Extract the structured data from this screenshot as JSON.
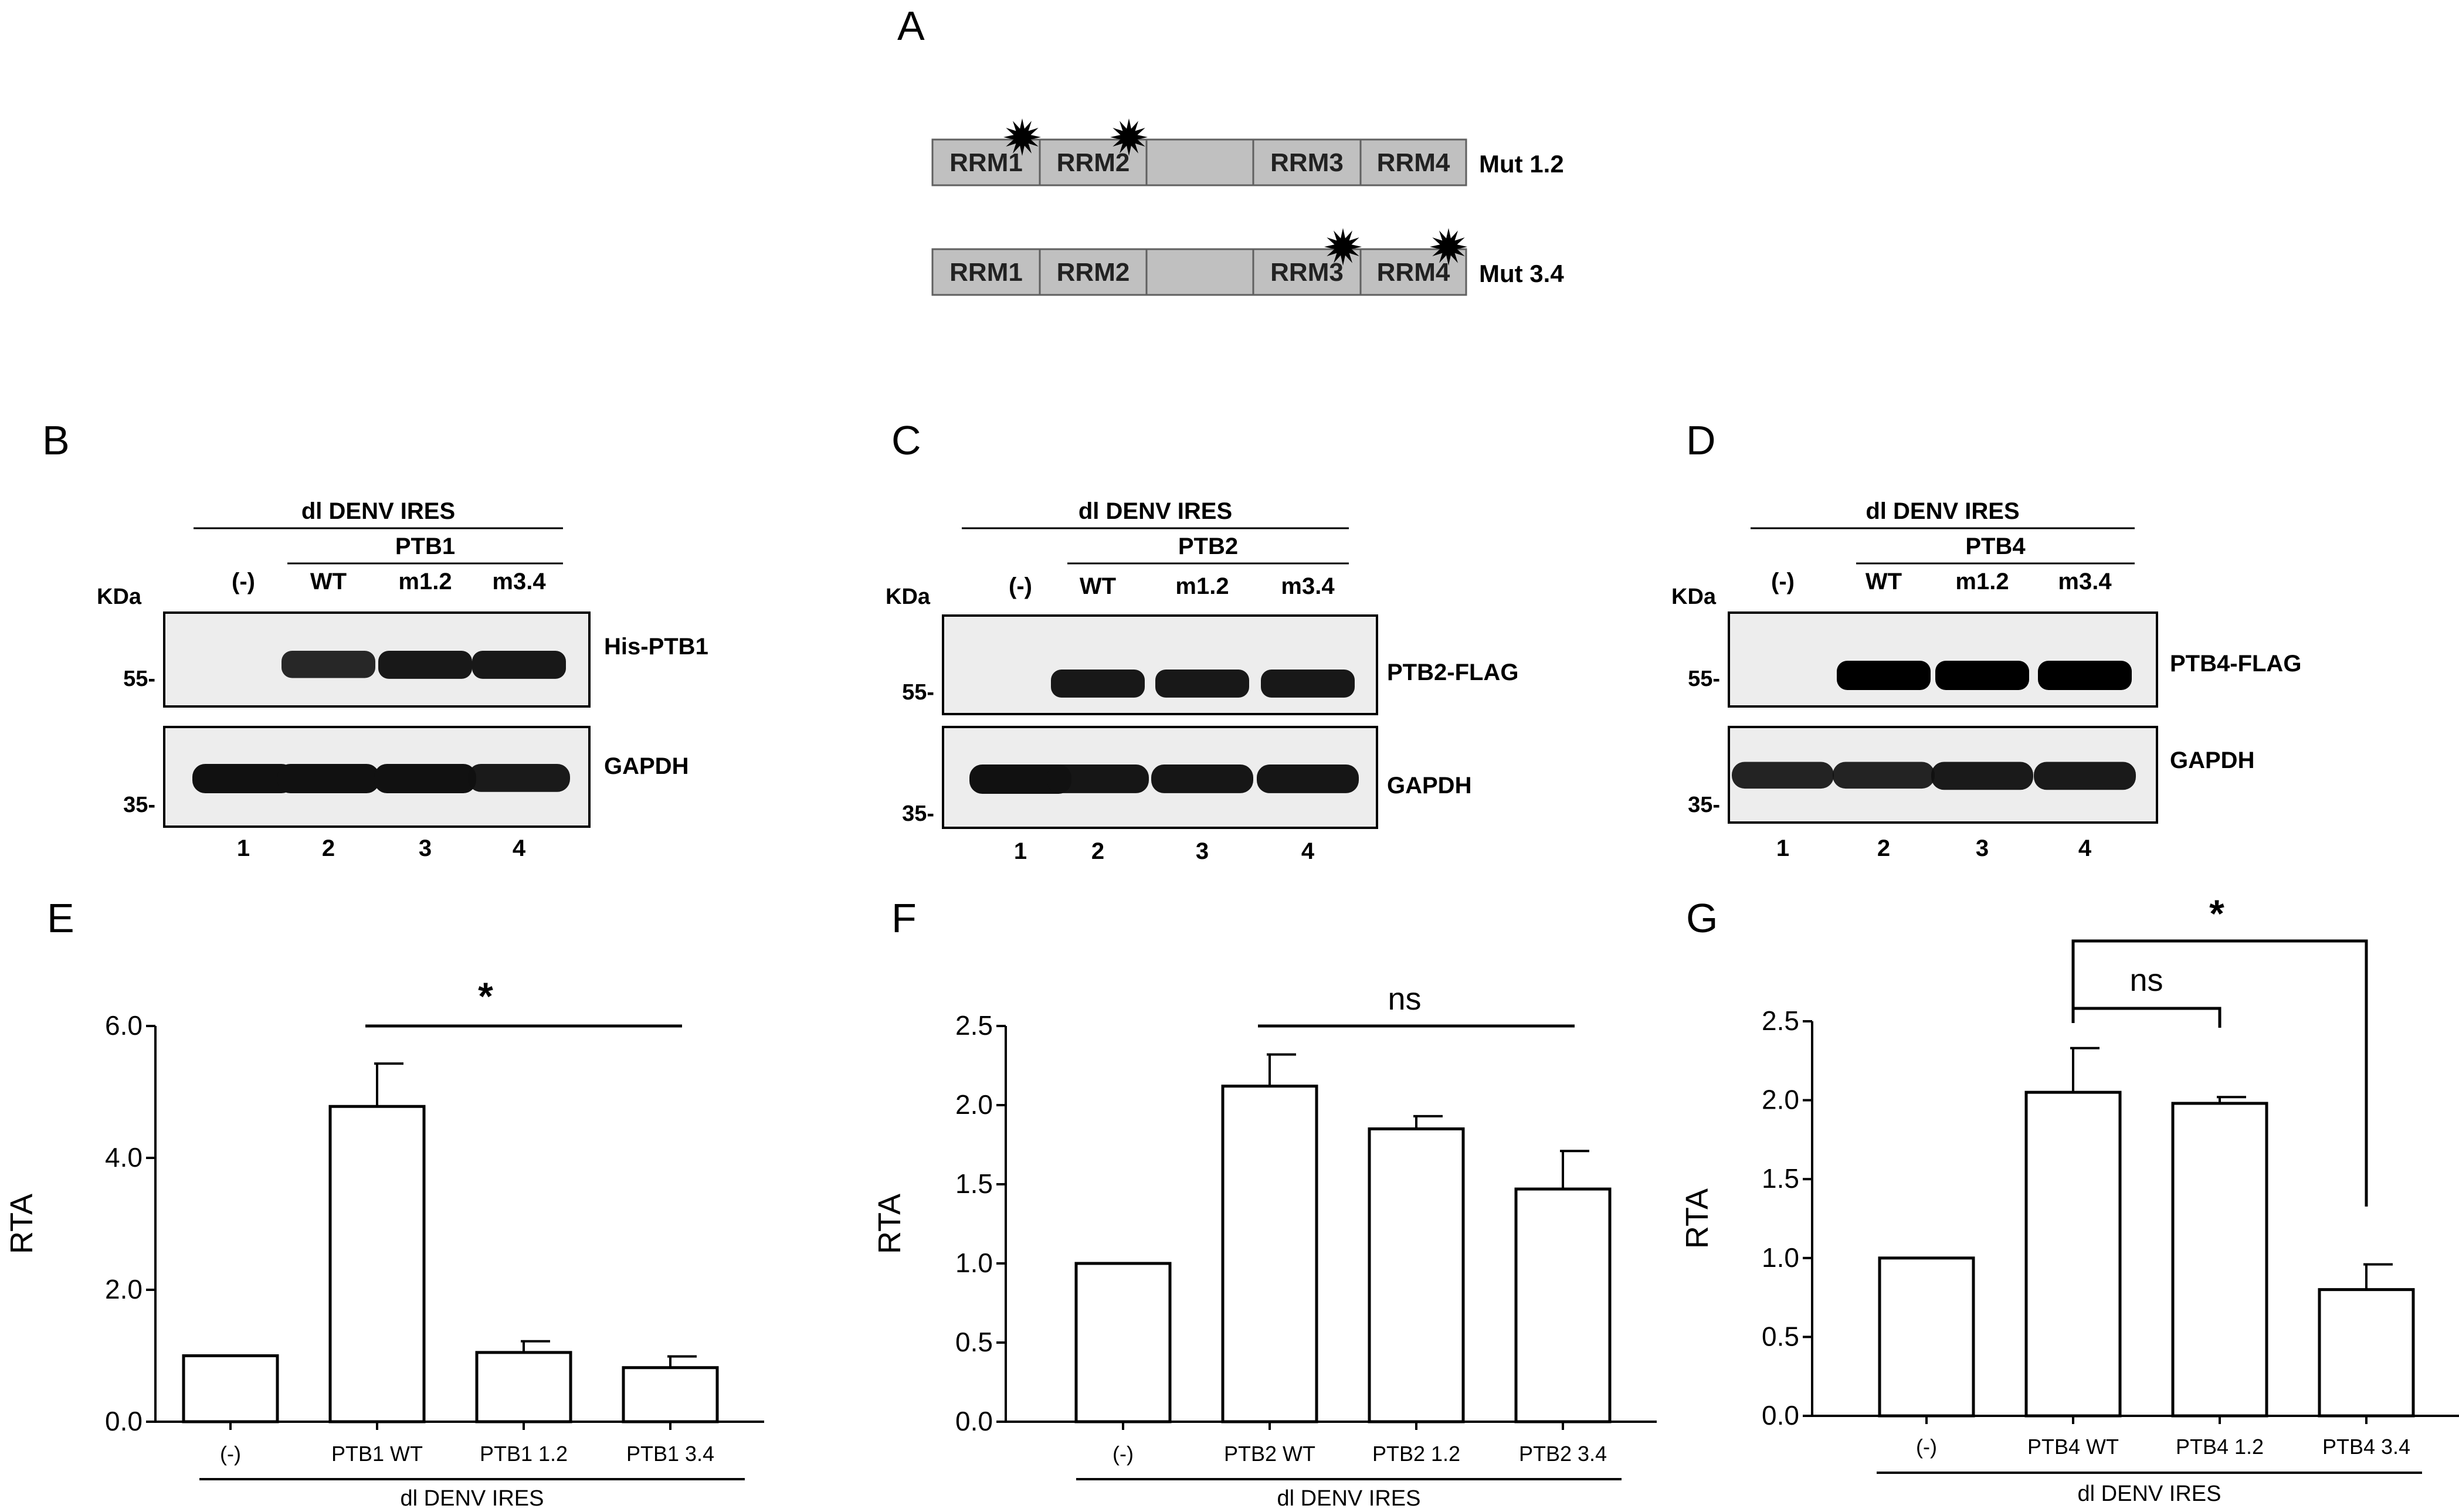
{
  "panel_letters": {
    "A": "A",
    "B": "B",
    "C": "C",
    "D": "D",
    "E": "E",
    "F": "F",
    "G": "G"
  },
  "panel_a": {
    "constructs": [
      {
        "domains": [
          "RRM1",
          "RRM2",
          "RRM3",
          "RRM4"
        ],
        "label": "Mut 1.2",
        "mutated": [
          "RRM1",
          "RRM2"
        ]
      },
      {
        "domains": [
          "RRM1",
          "RRM2",
          "RRM3",
          "RRM4"
        ],
        "label": "Mut 3.4",
        "mutated": [
          "RRM3",
          "RRM4"
        ]
      }
    ]
  },
  "blots": [
    {
      "header": "dl DENV IRES",
      "subheader": "PTB1",
      "lanes": [
        "(-)",
        "WT",
        "m1.2",
        "m3.4"
      ],
      "lane_numbers": [
        "1",
        "2",
        "3",
        "4"
      ],
      "kda_label": "KDa",
      "markers": [
        "55-",
        "35-"
      ],
      "bands": [
        "His-PTB1",
        "GAPDH"
      ],
      "top_intensity": [
        0,
        0.75,
        0.85,
        0.85
      ],
      "bottom_intensity": [
        1,
        1,
        1,
        0.9
      ]
    },
    {
      "header": "dl DENV IRES",
      "subheader": "PTB2",
      "lanes": [
        "(-)",
        "WT",
        "m1.2",
        "m3.4"
      ],
      "lane_numbers": [
        "1",
        "2",
        "3",
        "4"
      ],
      "kda_label": "KDa",
      "markers": [
        "55-",
        "35-"
      ],
      "bands": [
        "PTB2-FLAG",
        "GAPDH"
      ],
      "top_intensity": [
        0,
        0.85,
        0.85,
        0.85
      ],
      "bottom_intensity": [
        1,
        0.95,
        0.95,
        0.95
      ]
    },
    {
      "header": "dl DENV IRES",
      "subheader": "PTB4",
      "lanes": [
        "(-)",
        "WT",
        "m1.2",
        "m3.4"
      ],
      "lane_numbers": [
        "1",
        "2",
        "3",
        "4"
      ],
      "kda_label": "KDa",
      "markers": [
        "55-",
        "35-"
      ],
      "bands": [
        "PTB4-FLAG",
        "GAPDH"
      ],
      "top_intensity": [
        0,
        1,
        1,
        1
      ],
      "bottom_intensity": [
        0.8,
        0.8,
        0.9,
        0.9
      ]
    }
  ],
  "chart_data": [
    {
      "type": "bar",
      "categories": [
        "(-)",
        "PTB1 WT",
        "PTB1 1.2",
        "PTB1 3.4"
      ],
      "values": [
        1.0,
        4.78,
        1.05,
        0.82
      ],
      "errors": [
        0,
        0.65,
        0.17,
        0.17
      ],
      "ylabel": "RTA",
      "ylim": [
        0,
        6.0
      ],
      "yticks": [
        "0.0",
        "2.0",
        "4.0",
        "6.0"
      ],
      "group_label": "dl DENV IRES",
      "significance": [
        {
          "label": "*",
          "from": 1,
          "to": 3,
          "type": "line"
        }
      ]
    },
    {
      "type": "bar",
      "categories": [
        "(-)",
        "PTB2 WT",
        "PTB2 1.2",
        "PTB2 3.4"
      ],
      "values": [
        1.0,
        2.12,
        1.85,
        1.47
      ],
      "errors": [
        0,
        0.2,
        0.08,
        0.24
      ],
      "ylabel": "RTA",
      "ylim": [
        0,
        2.5
      ],
      "yticks": [
        "0.0",
        "0.5",
        "1.0",
        "1.5",
        "2.0",
        "2.5"
      ],
      "group_label": "dl DENV IRES",
      "significance": [
        {
          "label": "ns",
          "from": 1,
          "to": 3,
          "type": "line"
        }
      ]
    },
    {
      "type": "bar",
      "categories": [
        "(-)",
        "PTB4  WT",
        "PTB4  1.2",
        "PTB4 3.4"
      ],
      "values": [
        1.0,
        2.05,
        1.98,
        0.8
      ],
      "errors": [
        0,
        0.28,
        0.04,
        0.16
      ],
      "ylabel": "RTA",
      "ylim": [
        0,
        2.5
      ],
      "yticks": [
        "0.0",
        "0.5",
        "1.0",
        "1.5",
        "2.0",
        "2.5"
      ],
      "group_label": "dl DENV IRES",
      "significance": [
        {
          "label": "ns",
          "from": 1,
          "to": 2,
          "type": "bracket"
        },
        {
          "label": "*",
          "from": 1,
          "to": 3,
          "type": "bracket"
        }
      ]
    }
  ]
}
